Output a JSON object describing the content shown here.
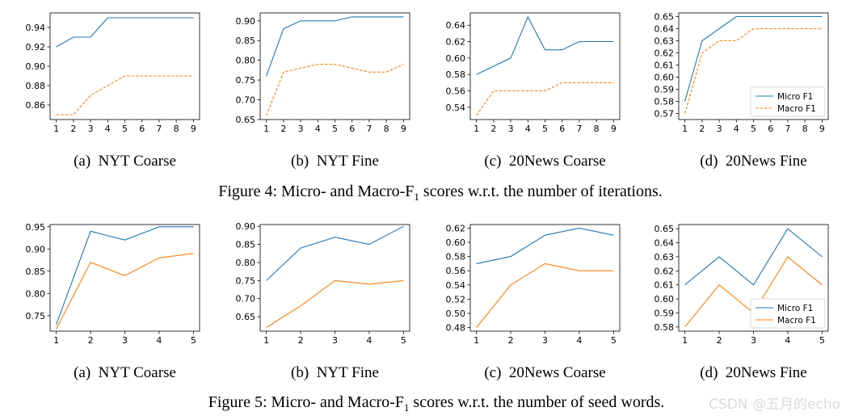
{
  "figure_captions": [
    {
      "prefix": "Figure 4: Micro- and Macro-F",
      "sub": "1",
      "suffix": " scores w.r.t. the number of iterations."
    },
    {
      "prefix": "Figure 5: Micro- and Macro-F",
      "sub": "1",
      "suffix": " scores w.r.t. the number of seed words."
    }
  ],
  "watermark": "CSDN @五月的echo",
  "colors": {
    "micro": "#1f77b4",
    "macro": "#ff7f0e",
    "axis": "#000000"
  },
  "chart_data": [
    {
      "type": "line",
      "row": 0,
      "col": 0,
      "caption": "(a)  NYT Coarse",
      "x": [
        1,
        2,
        3,
        4,
        5,
        6,
        7,
        8,
        9
      ],
      "ylim": [
        0.845,
        0.955
      ],
      "yticks": [
        0.86,
        0.88,
        0.9,
        0.92,
        0.94
      ],
      "ytick_labels": [
        "0.86",
        "0.88",
        "0.90",
        "0.92",
        "0.94"
      ],
      "series": [
        {
          "name": "Micro F1",
          "style": "solid",
          "values": [
            0.92,
            0.93,
            0.93,
            0.95,
            0.95,
            0.95,
            0.95,
            0.95,
            0.95
          ]
        },
        {
          "name": "Macro F1",
          "style": "dashed",
          "values": [
            0.85,
            0.85,
            0.87,
            0.88,
            0.89,
            0.89,
            0.89,
            0.89,
            0.89
          ]
        }
      ]
    },
    {
      "type": "line",
      "row": 0,
      "col": 1,
      "caption": "(b)  NYT Fine",
      "x": [
        1,
        2,
        3,
        4,
        5,
        6,
        7,
        8,
        9
      ],
      "ylim": [
        0.65,
        0.92
      ],
      "yticks": [
        0.65,
        0.7,
        0.75,
        0.8,
        0.85,
        0.9
      ],
      "ytick_labels": [
        "0.65",
        "0.70",
        "0.75",
        "0.80",
        "0.85",
        "0.90"
      ],
      "series": [
        {
          "name": "Micro F1",
          "style": "solid",
          "values": [
            0.76,
            0.88,
            0.9,
            0.9,
            0.9,
            0.91,
            0.91,
            0.91,
            0.91
          ]
        },
        {
          "name": "Macro F1",
          "style": "dashed",
          "values": [
            0.66,
            0.77,
            0.78,
            0.79,
            0.79,
            0.78,
            0.77,
            0.77,
            0.79
          ]
        }
      ]
    },
    {
      "type": "line",
      "row": 0,
      "col": 2,
      "caption": "(c)  20News Coarse",
      "x": [
        1,
        2,
        3,
        4,
        5,
        6,
        7,
        8,
        9
      ],
      "ylim": [
        0.525,
        0.655
      ],
      "yticks": [
        0.54,
        0.56,
        0.58,
        0.6,
        0.62,
        0.64
      ],
      "ytick_labels": [
        "0.54",
        "0.56",
        "0.58",
        "0.60",
        "0.62",
        "0.64"
      ],
      "series": [
        {
          "name": "Micro F1",
          "style": "solid",
          "values": [
            0.58,
            0.59,
            0.6,
            0.65,
            0.61,
            0.61,
            0.62,
            0.62,
            0.62
          ]
        },
        {
          "name": "Macro F1",
          "style": "dashed",
          "values": [
            0.53,
            0.56,
            0.56,
            0.56,
            0.56,
            0.57,
            0.57,
            0.57,
            0.57
          ]
        }
      ]
    },
    {
      "type": "line",
      "row": 0,
      "col": 3,
      "caption": "(d)  20News Fine",
      "x": [
        1,
        2,
        3,
        4,
        5,
        6,
        7,
        8,
        9
      ],
      "ylim": [
        0.565,
        0.653
      ],
      "yticks": [
        0.57,
        0.58,
        0.59,
        0.6,
        0.61,
        0.62,
        0.63,
        0.64,
        0.65
      ],
      "ytick_labels": [
        "0.57",
        "0.58",
        "0.59",
        "0.60",
        "0.61",
        "0.62",
        "0.63",
        "0.64",
        "0.65"
      ],
      "legend": {
        "position": "lower-right",
        "entries": [
          "Micro F1",
          "Macro F1"
        ]
      },
      "series": [
        {
          "name": "Micro F1",
          "style": "solid",
          "values": [
            0.58,
            0.63,
            0.64,
            0.65,
            0.65,
            0.65,
            0.65,
            0.65,
            0.65
          ]
        },
        {
          "name": "Macro F1",
          "style": "dashed",
          "values": [
            0.57,
            0.62,
            0.63,
            0.63,
            0.64,
            0.64,
            0.64,
            0.64,
            0.64
          ]
        }
      ]
    },
    {
      "type": "line",
      "row": 1,
      "col": 0,
      "caption": "(a)  NYT Coarse",
      "x": [
        1,
        2,
        3,
        4,
        5
      ],
      "ylim": [
        0.715,
        0.955
      ],
      "yticks": [
        0.75,
        0.8,
        0.85,
        0.9,
        0.95
      ],
      "ytick_labels": [
        "0.75",
        "0.80",
        "0.85",
        "0.90",
        "0.95"
      ],
      "series": [
        {
          "name": "Micro F1",
          "style": "solid",
          "values": [
            0.73,
            0.94,
            0.92,
            0.95,
            0.95
          ]
        },
        {
          "name": "Macro F1",
          "style": "solid",
          "values": [
            0.72,
            0.87,
            0.84,
            0.88,
            0.89
          ]
        }
      ]
    },
    {
      "type": "line",
      "row": 1,
      "col": 1,
      "caption": "(b)  NYT Fine",
      "x": [
        1,
        2,
        3,
        4,
        5
      ],
      "ylim": [
        0.61,
        0.905
      ],
      "yticks": [
        0.65,
        0.7,
        0.75,
        0.8,
        0.85,
        0.9
      ],
      "ytick_labels": [
        "0.65",
        "0.70",
        "0.75",
        "0.80",
        "0.85",
        "0.90"
      ],
      "series": [
        {
          "name": "Micro F1",
          "style": "solid",
          "values": [
            0.75,
            0.84,
            0.87,
            0.85,
            0.9
          ]
        },
        {
          "name": "Macro F1",
          "style": "solid",
          "values": [
            0.62,
            0.68,
            0.75,
            0.74,
            0.75
          ]
        }
      ]
    },
    {
      "type": "line",
      "row": 1,
      "col": 2,
      "caption": "(c)  20News Coarse",
      "x": [
        1,
        2,
        3,
        4,
        5
      ],
      "ylim": [
        0.475,
        0.625
      ],
      "yticks": [
        0.48,
        0.5,
        0.52,
        0.54,
        0.56,
        0.58,
        0.6,
        0.62
      ],
      "ytick_labels": [
        "0.48",
        "0.50",
        "0.52",
        "0.54",
        "0.56",
        "0.58",
        "0.60",
        "0.62"
      ],
      "series": [
        {
          "name": "Micro F1",
          "style": "solid",
          "values": [
            0.57,
            0.58,
            0.61,
            0.62,
            0.61
          ]
        },
        {
          "name": "Macro F1",
          "style": "solid",
          "values": [
            0.48,
            0.54,
            0.57,
            0.56,
            0.56
          ]
        }
      ]
    },
    {
      "type": "line",
      "row": 1,
      "col": 3,
      "caption": "(d)  20News Fine",
      "x": [
        1,
        2,
        3,
        4,
        5
      ],
      "ylim": [
        0.577,
        0.653
      ],
      "yticks": [
        0.58,
        0.59,
        0.6,
        0.61,
        0.62,
        0.63,
        0.64,
        0.65
      ],
      "ytick_labels": [
        "0.58",
        "0.59",
        "0.60",
        "0.61",
        "0.62",
        "0.63",
        "0.64",
        "0.65"
      ],
      "legend": {
        "position": "lower-right",
        "entries": [
          "Micro F1",
          "Macro F1"
        ]
      },
      "series": [
        {
          "name": "Micro F1",
          "style": "solid",
          "values": [
            0.61,
            0.63,
            0.61,
            0.65,
            0.63
          ]
        },
        {
          "name": "Macro F1",
          "style": "solid",
          "values": [
            0.58,
            0.61,
            0.59,
            0.63,
            0.61
          ]
        }
      ]
    }
  ]
}
